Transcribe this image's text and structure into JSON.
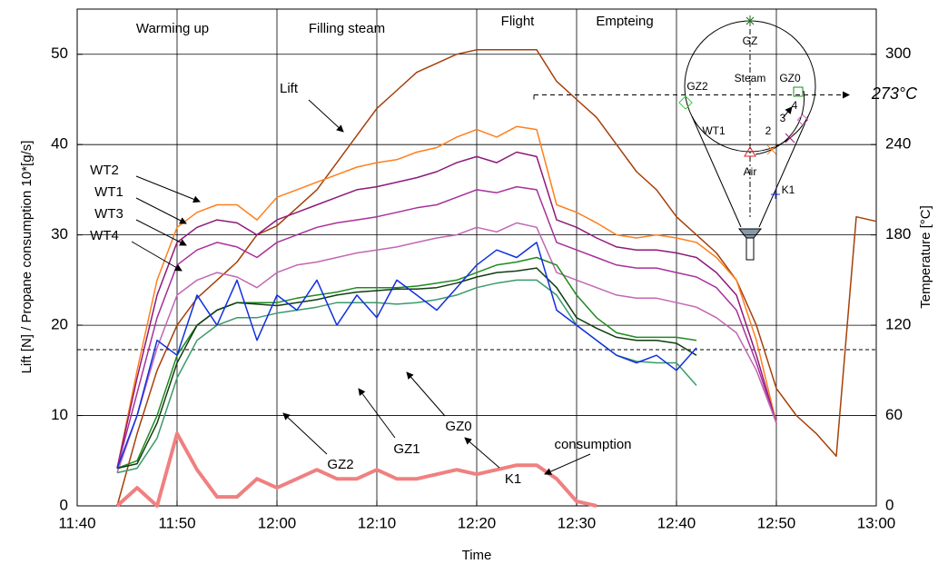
{
  "chart_data": {
    "type": "line",
    "x_label": "Time",
    "y_label": "Lift [N] / Propane consumption 10*[g/s]",
    "y2_label": "Temperature [°C]",
    "xlim": [
      "11:40",
      "13:00"
    ],
    "xticks": [
      "11:40",
      "11:50",
      "12:00",
      "12:10",
      "12:20",
      "12:30",
      "12:40",
      "12:50",
      "13:00"
    ],
    "ylim": [
      0,
      55
    ],
    "yticks": [
      0,
      10,
      20,
      30,
      40,
      50
    ],
    "y2lim": [
      0,
      330
    ],
    "y2ticks": [
      0,
      60,
      120,
      180,
      240,
      300
    ],
    "grid": true,
    "phases": [
      "Warming up",
      "Filling steam",
      "Flight",
      "Empteing"
    ],
    "reference_line": 17.3,
    "temperature_marker": {
      "value": 273,
      "label": "273°C"
    },
    "diagram_labels": [
      "GZ",
      "Steam",
      "GZ0",
      "GZ2",
      "WT1",
      "2",
      "3",
      "4",
      "Air",
      "K1"
    ],
    "x": [
      "11:42",
      "11:44",
      "11:46",
      "11:48",
      "11:50",
      "11:52",
      "11:54",
      "11:56",
      "11:58",
      "12:00",
      "12:02",
      "12:04",
      "12:06",
      "12:08",
      "12:10",
      "12:12",
      "12:14",
      "12:16",
      "12:18",
      "12:20",
      "12:22",
      "12:24",
      "12:26",
      "12:28",
      "12:30",
      "12:32",
      "12:34",
      "12:36",
      "12:38",
      "12:40",
      "12:42",
      "12:44",
      "12:46",
      "12:48",
      "12:50",
      "12:52",
      "12:54",
      "12:56",
      "12:58",
      "13:00"
    ],
    "series": [
      {
        "name": "Lift",
        "color": "#a5400a",
        "values": [
          null,
          0,
          8,
          15,
          20,
          23,
          25,
          27,
          30,
          31,
          33,
          35,
          38,
          41,
          44,
          46,
          48,
          49,
          50,
          50.5,
          50.5,
          50.5,
          50.5,
          47,
          45,
          43,
          40,
          37,
          35,
          32,
          30,
          28,
          25,
          20,
          13,
          10,
          8,
          5.5,
          32,
          31.5
        ]
      },
      {
        "name": "consumption",
        "color": "#f08080",
        "values": [
          null,
          0,
          2,
          0,
          8,
          4,
          1,
          1,
          3,
          2,
          3,
          4,
          3,
          3,
          4,
          3,
          3,
          3.5,
          4,
          3.5,
          4,
          4.5,
          4.5,
          3,
          0.5,
          0,
          null,
          null,
          null,
          null,
          null,
          null,
          null,
          null,
          null,
          null,
          null,
          null,
          null,
          null
        ]
      },
      {
        "name": "WT2",
        "axis": "y2",
        "color": "#ff7f1e",
        "values": [
          null,
          25,
          90,
          150,
          185,
          195,
          200,
          200,
          190,
          205,
          210,
          215,
          220,
          225,
          228,
          230,
          235,
          238,
          245,
          250,
          245,
          252,
          250,
          200,
          195,
          188,
          180,
          178,
          180,
          178,
          175,
          165,
          150,
          110,
          55,
          null,
          null,
          null,
          null,
          null
        ]
      },
      {
        "name": "WT1",
        "axis": "y2",
        "color": "#8e1a7a",
        "values": [
          null,
          25,
          85,
          140,
          175,
          185,
          190,
          188,
          180,
          190,
          195,
          200,
          205,
          210,
          212,
          215,
          218,
          222,
          228,
          232,
          228,
          235,
          232,
          190,
          185,
          178,
          172,
          170,
          170,
          168,
          165,
          155,
          140,
          100,
          55,
          null,
          null,
          null,
          null,
          null
        ]
      },
      {
        "name": "WT3",
        "axis": "y2",
        "color": "#a8309a",
        "values": [
          null,
          25,
          75,
          125,
          160,
          170,
          175,
          172,
          165,
          175,
          180,
          185,
          188,
          190,
          192,
          195,
          198,
          200,
          205,
          210,
          208,
          212,
          210,
          175,
          170,
          165,
          160,
          158,
          158,
          155,
          152,
          145,
          130,
          95,
          55,
          null,
          null,
          null,
          null,
          null
        ]
      },
      {
        "name": "WT4",
        "axis": "y2",
        "color": "#c266b4",
        "values": [
          null,
          22,
          60,
          105,
          140,
          150,
          155,
          152,
          145,
          155,
          160,
          162,
          165,
          168,
          170,
          172,
          175,
          178,
          180,
          185,
          182,
          188,
          185,
          155,
          150,
          145,
          140,
          138,
          138,
          135,
          132,
          125,
          115,
          90,
          55,
          null,
          null,
          null,
          null,
          null
        ]
      },
      {
        "name": "GZ0",
        "axis": "y2",
        "color": "#1f8a1f",
        "values": [
          null,
          25,
          30,
          60,
          100,
          120,
          130,
          135,
          135,
          135,
          138,
          140,
          142,
          145,
          145,
          145,
          146,
          148,
          150,
          155,
          160,
          162,
          165,
          160,
          140,
          125,
          115,
          112,
          112,
          112,
          110,
          null,
          null,
          null,
          null,
          null,
          null,
          null,
          null,
          null
        ]
      },
      {
        "name": "GZ1",
        "axis": "y2",
        "color": "#113d11",
        "values": [
          null,
          25,
          28,
          55,
          95,
          120,
          130,
          135,
          134,
          133,
          135,
          137,
          140,
          142,
          143,
          144,
          144,
          145,
          148,
          152,
          155,
          156,
          158,
          145,
          125,
          118,
          112,
          110,
          110,
          108,
          100,
          null,
          null,
          null,
          null,
          null,
          null,
          null,
          null,
          null
        ]
      },
      {
        "name": "GZ2",
        "axis": "y2",
        "color": "#3a9a6a",
        "values": [
          null,
          22,
          25,
          45,
          85,
          110,
          120,
          125,
          125,
          128,
          130,
          132,
          135,
          135,
          135,
          134,
          135,
          137,
          140,
          145,
          148,
          150,
          150,
          140,
          120,
          110,
          100,
          96,
          95,
          95,
          80,
          null,
          null,
          null,
          null,
          null,
          null,
          null,
          null,
          null
        ]
      },
      {
        "name": "K1",
        "axis": "y2",
        "color": "#1030e0",
        "values": [
          null,
          25,
          60,
          110,
          100,
          140,
          120,
          150,
          110,
          140,
          130,
          150,
          120,
          140,
          125,
          150,
          140,
          130,
          145,
          160,
          170,
          165,
          175,
          130,
          120,
          110,
          100,
          95,
          100,
          90,
          105,
          null,
          null,
          null,
          null,
          null,
          null,
          null,
          null,
          null
        ]
      }
    ]
  }
}
